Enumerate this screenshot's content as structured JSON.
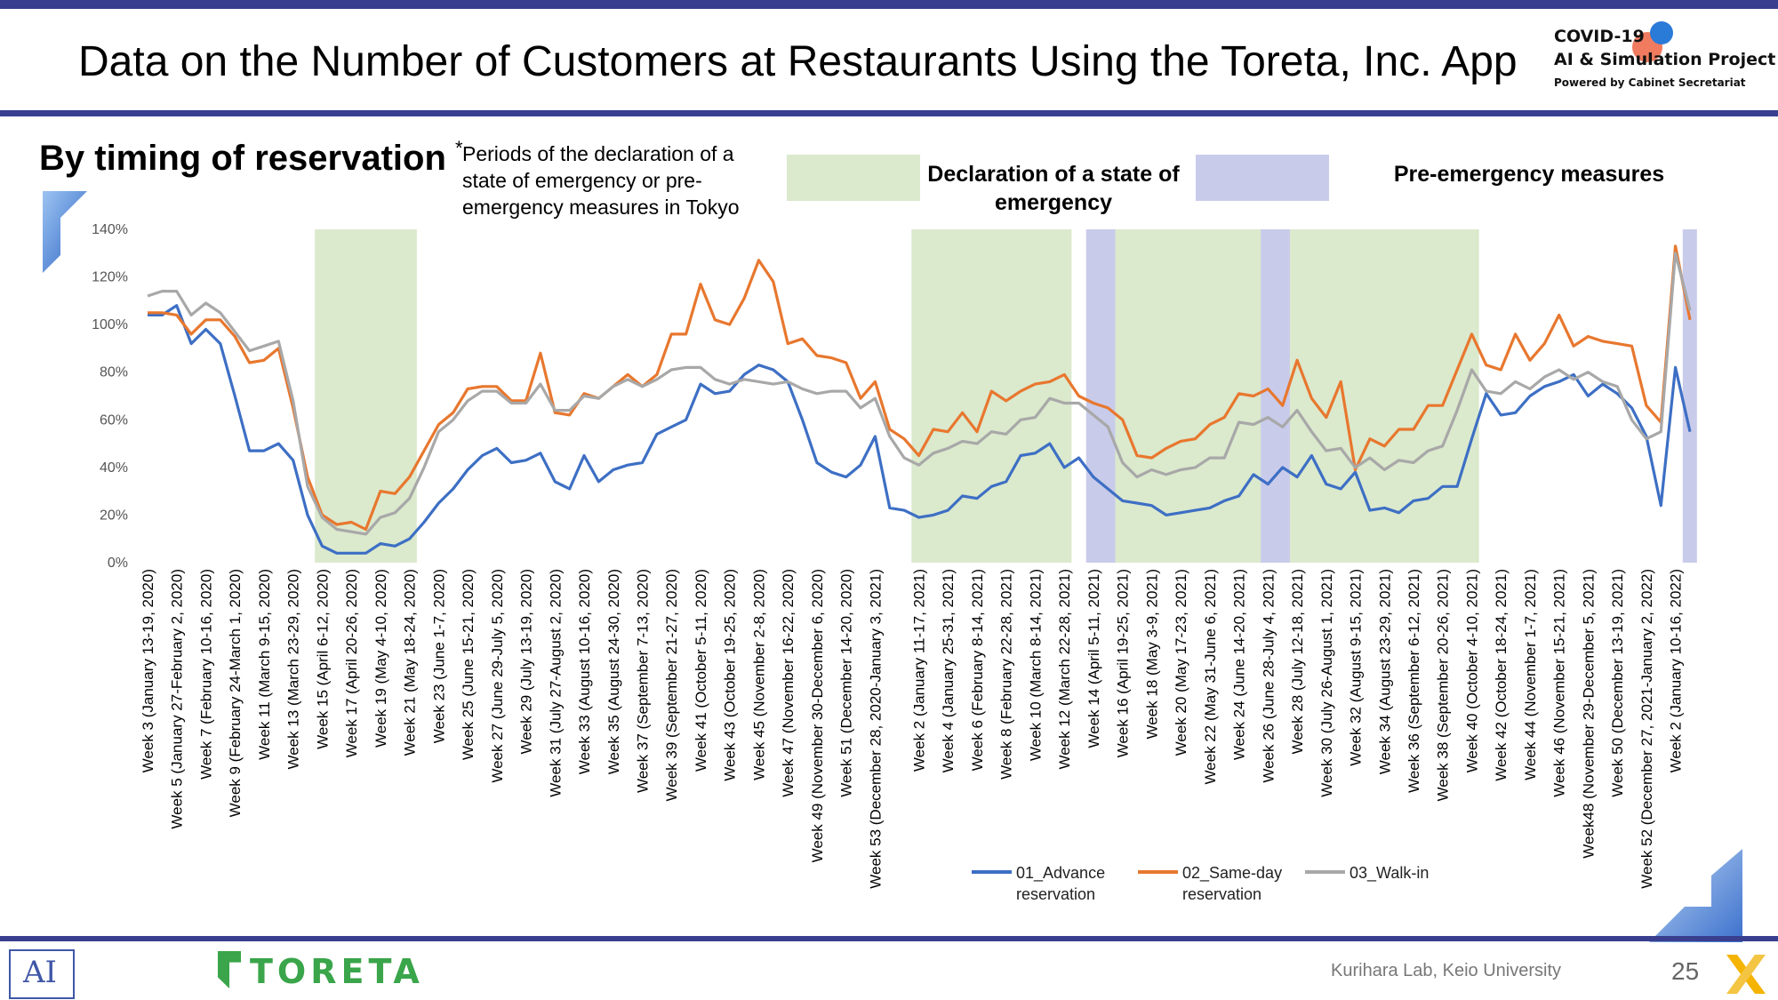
{
  "header": {
    "title": "Data on the Number of Customers at Restaurants Using the Toreta, Inc. App",
    "logo_line1": "COVID-19",
    "logo_line2": "AI & Simulation Project",
    "logo_line3": "Powered by Cabinet Secretariat"
  },
  "subtitle": "By timing of reservation",
  "note": {
    "asterisk": "*",
    "text": "Periods of the declaration of a state of emergency or pre-emergency measures in Tokyo"
  },
  "period_legend": {
    "emergency": "Declaration of a state of emergency",
    "pre_emergency": "Pre-emergency measures",
    "emergency_color": "#dbe9cd",
    "pre_emergency_color": "#c9cbea"
  },
  "footer": {
    "toreta_logo": "TORETA",
    "lab_logo": "AI",
    "credit": "Kurihara Lab, Keio University",
    "page_number": "25"
  },
  "chart_data": {
    "type": "line",
    "ylim": [
      0,
      140
    ],
    "yticks": [
      "0%",
      "20%",
      "40%",
      "60%",
      "80%",
      "100%",
      "120%",
      "140%"
    ],
    "grid": false,
    "legend_position": "bottom",
    "x_tick_labels": [
      "Week 3 (January 13-19, 2020)",
      "Week 5 (January 27-February 2, 2020)",
      "Week 7 (February 10-16, 2020)",
      "Week 9 (February 24-March 1, 2020)",
      "Week 11 (March 9-15, 2020)",
      "Week 13 (March 23-29, 2020)",
      "Week 15 (April 6-12, 2020)",
      "Week 17 (April 20-26, 2020)",
      "Week 19 (May 4-10, 2020)",
      "Week 21 (May 18-24, 2020)",
      "Week 23 (June 1-7, 2020)",
      "Week 25 (June 15-21, 2020)",
      "Week 27 (June 29-July 5, 2020)",
      "Week 29 (July 13-19, 2020)",
      "Week 31 (July 27-August 2, 2020)",
      "Week 33 (August 10-16, 2020)",
      "Week 35 (August 24-30, 2020)",
      "Week 37 (September 7-13, 2020)",
      "Week 39 (September 21-27, 2020)",
      "Week 41 (October 5-11, 2020)",
      "Week 43 (October 19-25, 2020)",
      "Week 45 (November 2-8, 2020)",
      "Week 47 (November 16-22, 2020)",
      "Week 49 (November 30-December 6, 2020)",
      "Week 51 (December 14-20, 2020)",
      "Week 53 (December 28, 2020-January 3, 2021)",
      "Week 2 (January 11-17, 2021)",
      "Week 4 (January 25-31, 2021)",
      "Week 6 (February 8-14, 2021)",
      "Week 8 (February 22-28, 2021)",
      "Week 10 (March 8-14, 2021)",
      "Week 12 (March 22-28, 2021)",
      "Week 14 (April 5-11, 2021)",
      "Week 16 (April 19-25, 2021)",
      "Week 18 (May 3-9, 2021)",
      "Week 20 (May 17-23, 2021)",
      "Week 22 (May 31-June 6, 2021)",
      "Week 24 (June 14-20, 2021)",
      "Week 26 (June 28-July 4, 2021)",
      "Week 28 (July 12-18, 2021)",
      "Week 30 (July 26-August 1, 2021)",
      "Week 32 (August 9-15, 2021)",
      "Week 34 (August 23-29, 2021)",
      "Week 36 (September 6-12, 2021)",
      "Week 38 (September 20-26, 2021)",
      "Week 40 (October 4-10, 2021)",
      "Week 42 (October 18-24, 2021)",
      "Week 44 (November 1-7, 2021)",
      "Week 46 (November 15-21, 2021)",
      "Week48 (November 29-December 5, 2021)",
      "Week 50 (December 13-19, 2021)",
      "Week 52 (December 27, 2021-January 2, 2022)",
      "Week 2 (January 10-16, 2022)"
    ],
    "periods": [
      {
        "kind": "emergency",
        "start": "Week 15 (April 6-12, 2020)",
        "end": "Week 21 (May 18-24, 2020)"
      },
      {
        "kind": "emergency",
        "start": "Week 2 (January 11-17, 2021)",
        "end": "Week 12 (March 22-28, 2021)"
      },
      {
        "kind": "pre_emergency",
        "start": "Week 14 (April 5-11, 2021)",
        "end": "Week 16 (April 19-25, 2021)"
      },
      {
        "kind": "emergency",
        "start": "Week 16 (April 19-25, 2021)",
        "end": "Week 26 (June 28-July 4, 2021)"
      },
      {
        "kind": "pre_emergency",
        "start": "Week 26 (June 28-July 4, 2021)",
        "end": "Week 28 (July 12-18, 2021)"
      },
      {
        "kind": "emergency",
        "start": "Week 28 (July 12-18, 2021)",
        "end": "Week 40 (October 4-10, 2021)"
      },
      {
        "kind": "pre_emergency",
        "start": "Week 2 (January 10-16, 2022)",
        "end": "Week 2 (January 10-16, 2022)"
      }
    ],
    "series": [
      {
        "name": "01_Advance reservation",
        "color": "#3d6fc4",
        "values": [
          104,
          104,
          108,
          92,
          98,
          92,
          70,
          47,
          47,
          50,
          43,
          20,
          7,
          4,
          4,
          4,
          8,
          7,
          10,
          17,
          25,
          31,
          39,
          45,
          48,
          42,
          43,
          46,
          34,
          31,
          45,
          34,
          39,
          41,
          42,
          54,
          57,
          60,
          75,
          71,
          72,
          79,
          83,
          81,
          76,
          60,
          42,
          38,
          36,
          41,
          53,
          23,
          22,
          19,
          20,
          22,
          28,
          27,
          32,
          34,
          45,
          46,
          50,
          40,
          44,
          36,
          31,
          26,
          25,
          24,
          20,
          21,
          22,
          23,
          26,
          28,
          37,
          33,
          40,
          36,
          45,
          33,
          31,
          38,
          22,
          23,
          21,
          26,
          27,
          32,
          32,
          52,
          71,
          62,
          63,
          70,
          74,
          76,
          79,
          70,
          75,
          71,
          65,
          53,
          24,
          82,
          55
        ]
      },
      {
        "name": "02_Same-day reservation",
        "color": "#e8772e",
        "values": [
          105,
          105,
          104,
          96,
          102,
          102,
          95,
          84,
          85,
          90,
          65,
          36,
          20,
          16,
          17,
          14,
          30,
          29,
          36,
          47,
          58,
          63,
          73,
          74,
          74,
          68,
          68,
          88,
          63,
          62,
          71,
          69,
          74,
          79,
          74,
          79,
          96,
          96,
          117,
          102,
          100,
          111,
          127,
          118,
          92,
          94,
          87,
          86,
          84,
          69,
          76,
          56,
          52,
          45,
          56,
          55,
          63,
          55,
          72,
          68,
          72,
          75,
          76,
          79,
          70,
          67,
          65,
          60,
          45,
          44,
          48,
          51,
          52,
          58,
          61,
          71,
          70,
          73,
          66,
          85,
          69,
          61,
          76,
          39,
          52,
          49,
          56,
          56,
          66,
          66,
          81,
          96,
          83,
          81,
          96,
          85,
          92,
          104,
          91,
          95,
          93,
          92,
          91,
          66,
          59,
          133,
          102
        ]
      },
      {
        "name": "03_Walk-in",
        "color": "#a8a8a8",
        "values": [
          112,
          114,
          114,
          104,
          109,
          105,
          97,
          89,
          91,
          93,
          68,
          32,
          19,
          14,
          13,
          12,
          19,
          21,
          27,
          40,
          55,
          60,
          68,
          72,
          72,
          67,
          67,
          75,
          64,
          64,
          70,
          69,
          74,
          77,
          74,
          77,
          81,
          82,
          82,
          77,
          75,
          77,
          76,
          75,
          76,
          73,
          71,
          72,
          72,
          65,
          69,
          53,
          44,
          41,
          46,
          48,
          51,
          50,
          55,
          54,
          60,
          61,
          69,
          67,
          67,
          62,
          57,
          42,
          36,
          39,
          37,
          39,
          40,
          44,
          44,
          59,
          58,
          61,
          57,
          64,
          55,
          47,
          48,
          40,
          44,
          39,
          43,
          42,
          47,
          49,
          64,
          81,
          72,
          71,
          76,
          73,
          78,
          81,
          77,
          80,
          76,
          74,
          60,
          52,
          55,
          130,
          106
        ]
      }
    ]
  }
}
